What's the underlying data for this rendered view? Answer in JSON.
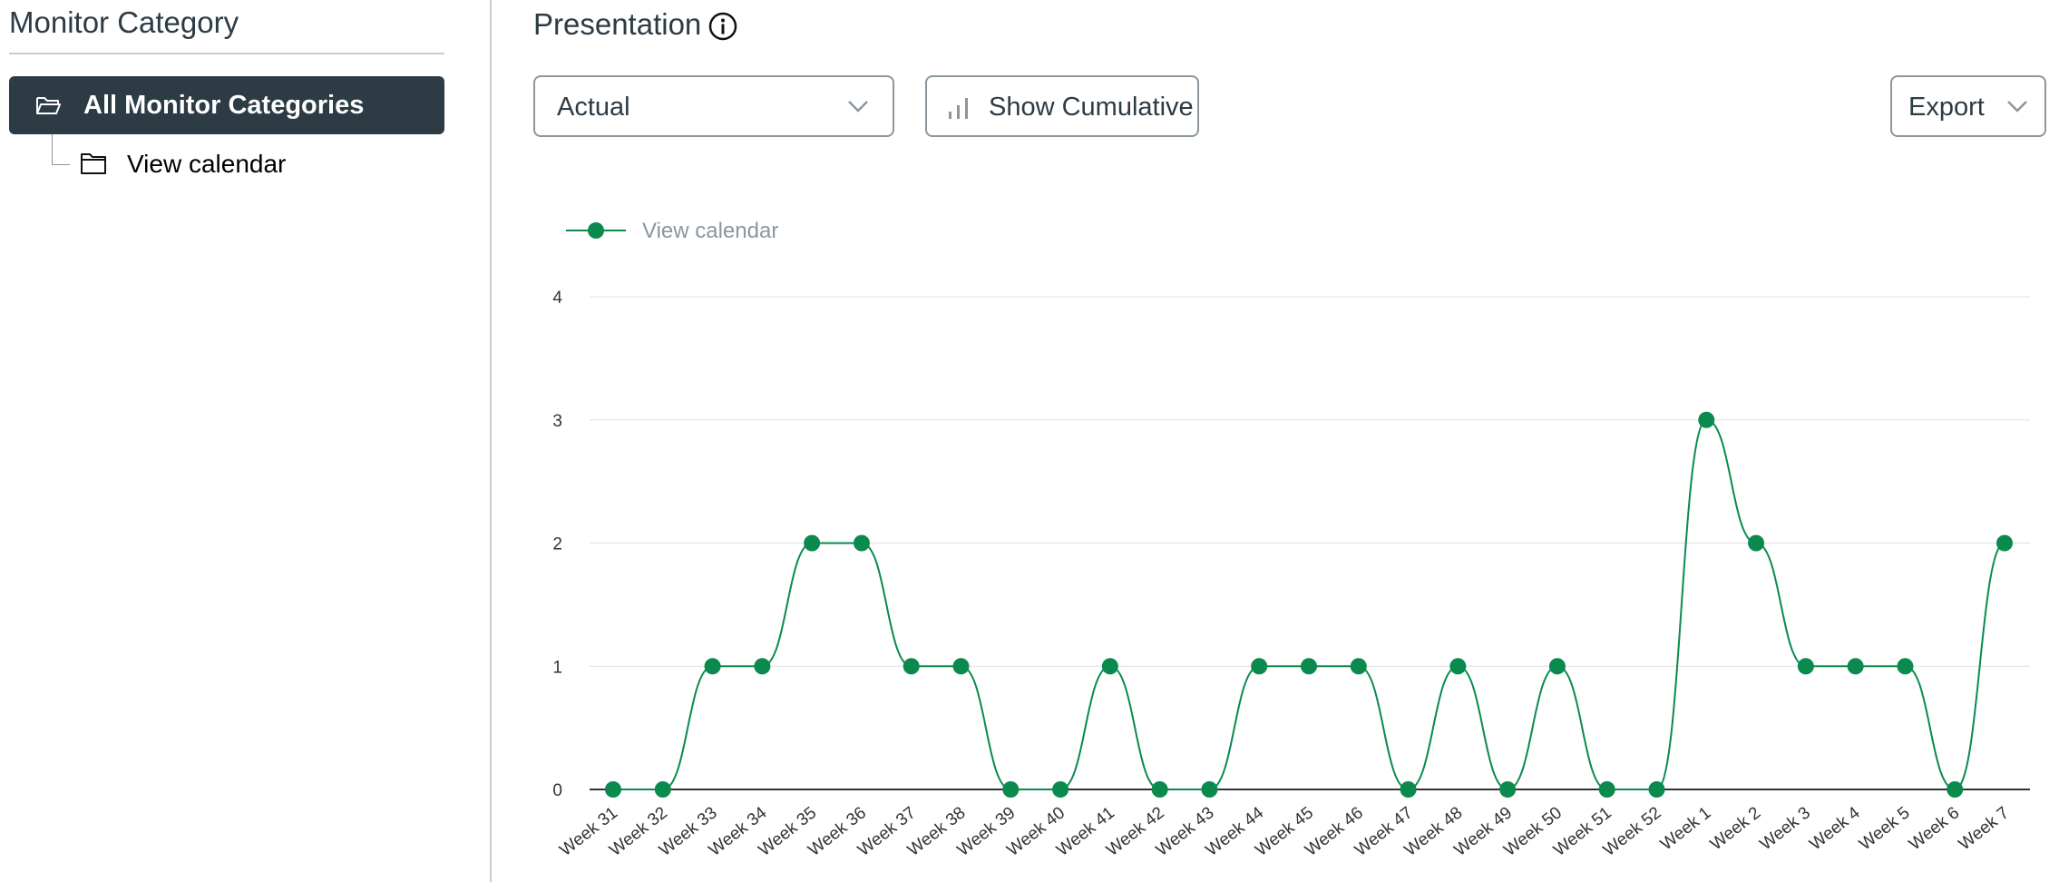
{
  "sidebar": {
    "title": "Monitor Category",
    "all_label": "All Monitor Categories",
    "child_label": "View calendar"
  },
  "main": {
    "title": "Presentation",
    "select_value": "Actual",
    "cumulative_label": "Show Cumulative",
    "export_label": "Export"
  },
  "colors": {
    "series": "#0b8a4e",
    "sidebar_active": "#2d3b45",
    "grid": "#e0e0e0"
  },
  "chart_data": {
    "type": "line",
    "categories": [
      "Week 31",
      "Week 32",
      "Week 33",
      "Week 34",
      "Week 35",
      "Week 36",
      "Week 37",
      "Week 38",
      "Week 39",
      "Week 40",
      "Week 41",
      "Week 42",
      "Week 43",
      "Week 44",
      "Week 45",
      "Week 46",
      "Week 47",
      "Week 48",
      "Week 49",
      "Week 50",
      "Week 51",
      "Week 52",
      "Week 1",
      "Week 2",
      "Week 3",
      "Week 4",
      "Week 5",
      "Week 6",
      "Week 7"
    ],
    "series": [
      {
        "name": "View calendar",
        "values": [
          0,
          0,
          1,
          1,
          2,
          2,
          1,
          1,
          0,
          0,
          1,
          0,
          0,
          1,
          1,
          1,
          0,
          1,
          0,
          1,
          0,
          0,
          3,
          2,
          1,
          1,
          1,
          0,
          2
        ]
      }
    ],
    "ylim": [
      0,
      4
    ],
    "yticks": [
      0,
      1,
      2,
      3,
      4
    ],
    "grid": true,
    "legend": "top-left"
  }
}
